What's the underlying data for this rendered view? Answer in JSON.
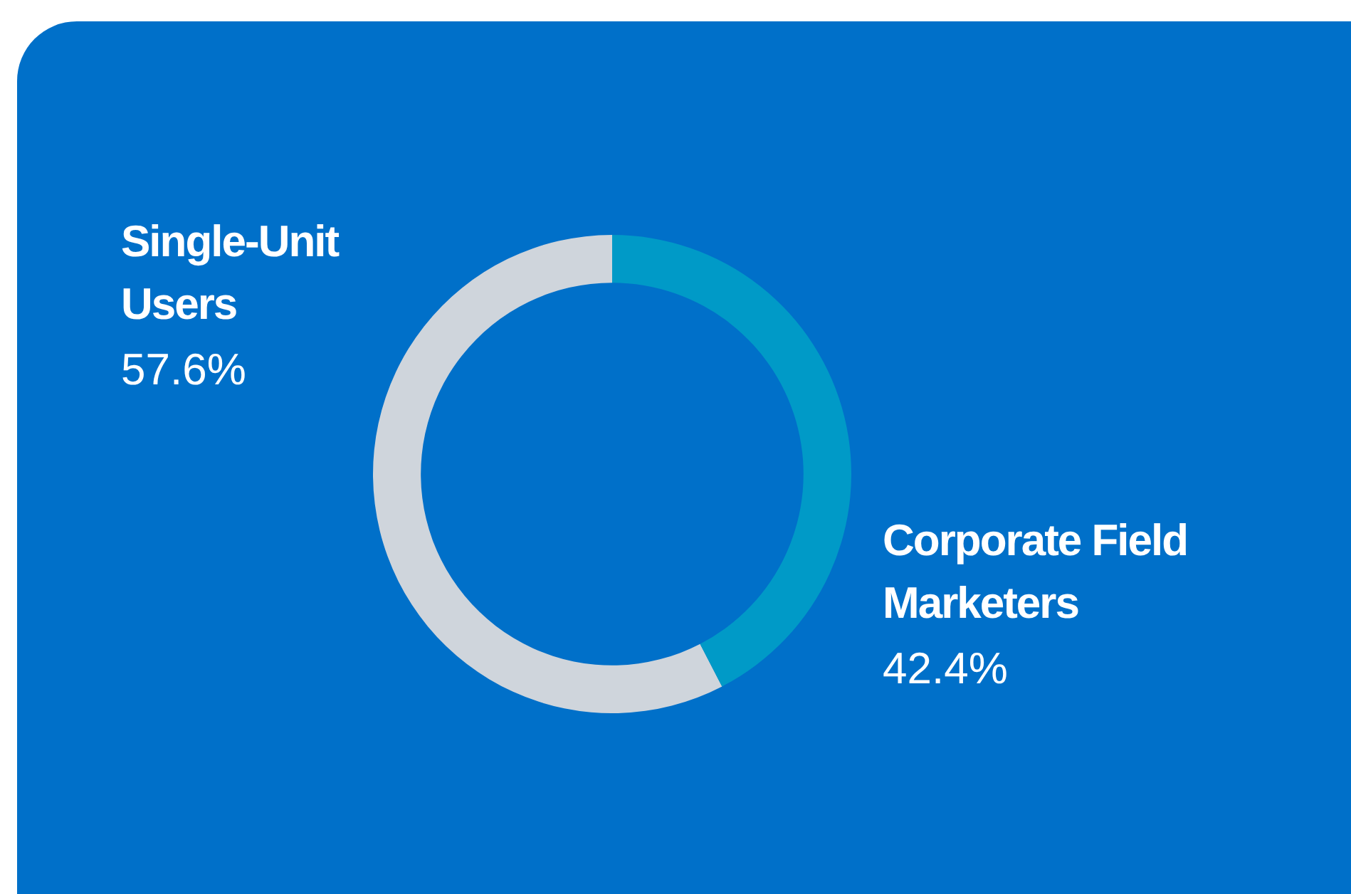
{
  "chart_data": {
    "type": "donut",
    "categories": [
      "Single-Unit Users",
      "Corporate Field Marketers"
    ],
    "values": [
      57.6,
      42.4
    ],
    "colors": [
      "#cfd5dc",
      "#009ac7"
    ],
    "value_labels": [
      "57.6%",
      "42.4%"
    ],
    "legend": false
  }
}
